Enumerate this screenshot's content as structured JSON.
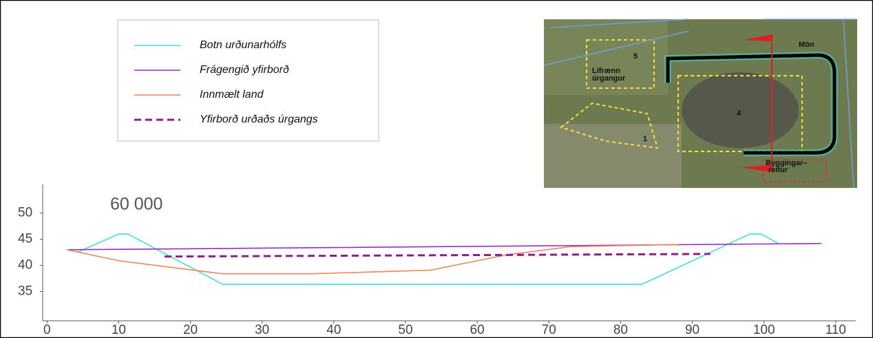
{
  "chart_data": {
    "type": "line",
    "annotation": "60 000",
    "legend": "upper left",
    "xlim": [
      -0.6,
      112.8
    ],
    "ylim": [
      29.4,
      55.5
    ],
    "xticks": [
      0,
      10,
      20,
      30,
      40,
      50,
      60,
      70,
      80,
      90,
      100,
      110
    ],
    "yticks": [
      35,
      40,
      45,
      50
    ],
    "series": [
      {
        "name": "Botn urðunarhólfs",
        "color": "#3fdede",
        "linestyle": "solid",
        "x": [
          4.2,
          10,
          11.3,
          24.5,
          83,
          98,
          99.6,
          102
        ],
        "values": [
          42.5,
          46,
          46,
          36.4,
          36.4,
          46,
          46,
          44.2
        ]
      },
      {
        "name": "Frágengið yfirborð",
        "color": "#9a2bc4",
        "linestyle": "solid",
        "x": [
          2.8,
          108
        ],
        "values": [
          43,
          44.2
        ]
      },
      {
        "name": "Innmælt land",
        "color": "#e8875a",
        "linestyle": "solid",
        "x": [
          2.8,
          10,
          24.5,
          37,
          53.5,
          64,
          73,
          88
        ],
        "values": [
          43,
          40.9,
          38.4,
          38.4,
          39.1,
          42,
          43.6,
          44
        ]
      },
      {
        "name": "Yfirborð urðaðs úrgangs",
        "color": "#8e1a8e",
        "linestyle": "dashed",
        "x": [
          16.4,
          92.5
        ],
        "values": [
          41.7,
          42.2
        ]
      }
    ]
  },
  "inset_map": {
    "labels": [
      "Mön",
      "5",
      "Lífrænn",
      "úrgangur",
      "4",
      "1",
      "Byggingar–",
      "reitur"
    ]
  }
}
